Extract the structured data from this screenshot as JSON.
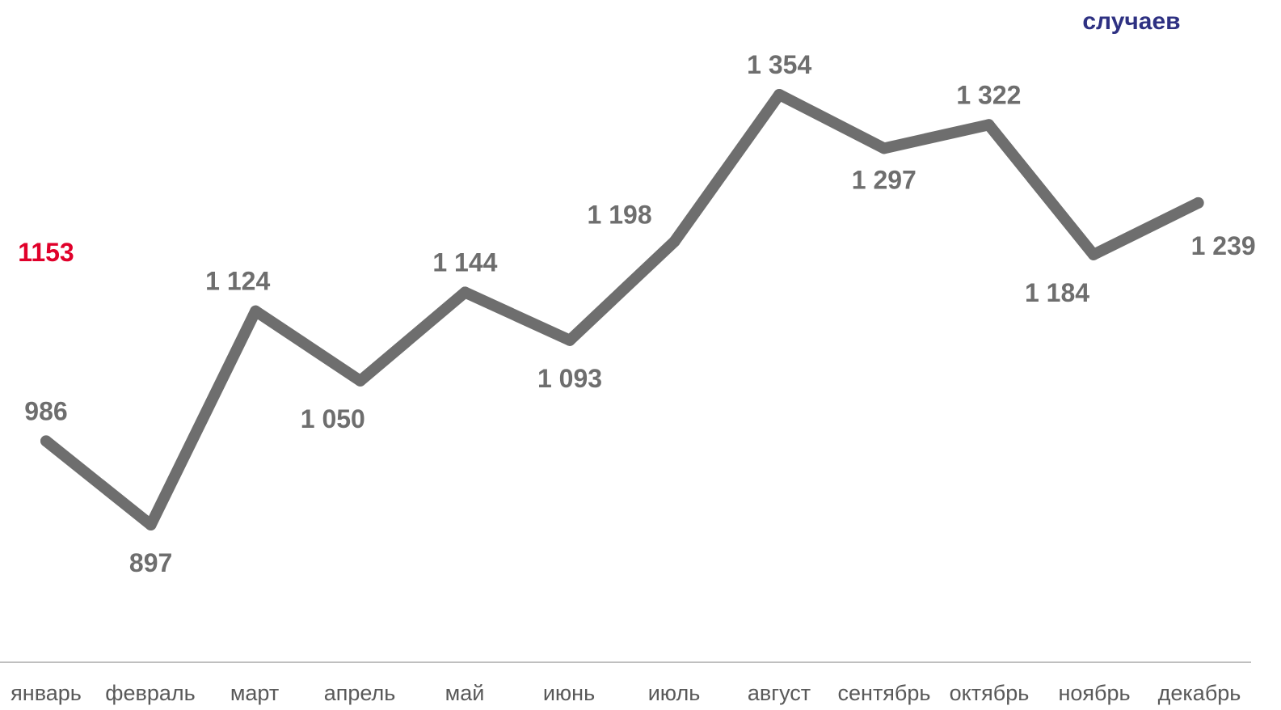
{
  "chart_data": {
    "type": "line",
    "unit_label": "случаев",
    "average_label": "1153",
    "categories": [
      "январь",
      "февраль",
      "март",
      "апрель",
      "май",
      "июнь",
      "июль",
      "август",
      "сентябрь",
      "октябрь",
      "ноябрь",
      "декабрь"
    ],
    "values": [
      986,
      897,
      1124,
      1050,
      1144,
      1093,
      1198,
      1354,
      1297,
      1322,
      1184,
      1239
    ],
    "value_labels": [
      "986",
      "897",
      "1 124",
      "1 050",
      "1 144",
      "1 093",
      "1 198",
      "1 354",
      "1 297",
      "1 322",
      "1 184",
      "1 239"
    ],
    "ylim": [
      800,
      1420
    ],
    "grid": false,
    "line_color": "#6e6e6e",
    "label_color": "#6e6e6e",
    "average_color": "#e0002a",
    "unit_color": "#2e3182",
    "axis_color": "#bfbfbf"
  }
}
